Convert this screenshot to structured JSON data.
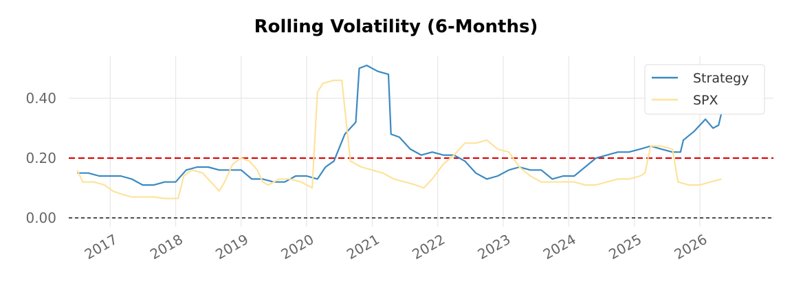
{
  "chart_data": {
    "type": "line",
    "title": "Rolling Volatility (6-Months)",
    "xlabel": "",
    "ylabel": "",
    "xlim": [
      "2016-05-15",
      "2027-02-15"
    ],
    "ylim": [
      -0.03,
      0.54
    ],
    "x_ticks": [
      "2017",
      "2018",
      "2019",
      "2020",
      "2021",
      "2022",
      "2023",
      "2024",
      "2025",
      "2026"
    ],
    "y_ticks": [
      "0.00",
      "0.20",
      "0.40"
    ],
    "grid": true,
    "legend_position": "top-right",
    "reference_lines": [
      {
        "y": 0.2,
        "style": "dashed",
        "color": "#dd0000"
      },
      {
        "y": 0.0,
        "style": "dashed",
        "color": "#000000"
      }
    ],
    "series": [
      {
        "name": "Strategy",
        "color": "#3a89c2",
        "points": [
          [
            "2016-07-01",
            0.15
          ],
          [
            "2016-09-01",
            0.15
          ],
          [
            "2016-11-01",
            0.14
          ],
          [
            "2017-01-01",
            0.14
          ],
          [
            "2017-03-01",
            0.14
          ],
          [
            "2017-05-01",
            0.13
          ],
          [
            "2017-07-01",
            0.11
          ],
          [
            "2017-09-01",
            0.11
          ],
          [
            "2017-11-01",
            0.12
          ],
          [
            "2018-01-01",
            0.12
          ],
          [
            "2018-03-01",
            0.16
          ],
          [
            "2018-05-01",
            0.17
          ],
          [
            "2018-07-01",
            0.17
          ],
          [
            "2018-09-01",
            0.16
          ],
          [
            "2018-11-01",
            0.16
          ],
          [
            "2019-01-01",
            0.16
          ],
          [
            "2019-03-01",
            0.13
          ],
          [
            "2019-05-01",
            0.13
          ],
          [
            "2019-07-01",
            0.12
          ],
          [
            "2019-09-01",
            0.12
          ],
          [
            "2019-11-01",
            0.14
          ],
          [
            "2020-01-01",
            0.14
          ],
          [
            "2020-03-01",
            0.13
          ],
          [
            "2020-04-15",
            0.17
          ],
          [
            "2020-06-01",
            0.19
          ],
          [
            "2020-08-01",
            0.28
          ],
          [
            "2020-10-01",
            0.32
          ],
          [
            "2020-10-20",
            0.5
          ],
          [
            "2020-12-01",
            0.51
          ],
          [
            "2021-02-01",
            0.49
          ],
          [
            "2021-04-01",
            0.48
          ],
          [
            "2021-04-15",
            0.28
          ],
          [
            "2021-06-01",
            0.27
          ],
          [
            "2021-08-01",
            0.23
          ],
          [
            "2021-10-01",
            0.21
          ],
          [
            "2021-12-01",
            0.22
          ],
          [
            "2022-02-01",
            0.21
          ],
          [
            "2022-04-01",
            0.21
          ],
          [
            "2022-06-01",
            0.19
          ],
          [
            "2022-08-01",
            0.15
          ],
          [
            "2022-10-01",
            0.13
          ],
          [
            "2022-12-01",
            0.14
          ],
          [
            "2023-02-01",
            0.16
          ],
          [
            "2023-04-01",
            0.17
          ],
          [
            "2023-06-01",
            0.16
          ],
          [
            "2023-08-01",
            0.16
          ],
          [
            "2023-10-01",
            0.13
          ],
          [
            "2023-12-01",
            0.14
          ],
          [
            "2024-02-01",
            0.14
          ],
          [
            "2024-04-01",
            0.17
          ],
          [
            "2024-06-01",
            0.2
          ],
          [
            "2024-08-01",
            0.21
          ],
          [
            "2024-10-01",
            0.22
          ],
          [
            "2024-12-01",
            0.22
          ],
          [
            "2025-02-01",
            0.23
          ],
          [
            "2025-04-01",
            0.24
          ],
          [
            "2025-06-01",
            0.23
          ],
          [
            "2025-08-01",
            0.22
          ],
          [
            "2025-09-15",
            0.22
          ],
          [
            "2025-10-01",
            0.26
          ],
          [
            "2025-12-01",
            0.29
          ],
          [
            "2026-02-01",
            0.33
          ],
          [
            "2026-03-15",
            0.3
          ],
          [
            "2026-04-15",
            0.31
          ],
          [
            "2026-05-01",
            0.35
          ]
        ]
      },
      {
        "name": "SPX",
        "color": "#fde39a",
        "points": [
          [
            "2016-07-01",
            0.16
          ],
          [
            "2016-08-01",
            0.12
          ],
          [
            "2016-10-01",
            0.12
          ],
          [
            "2016-12-01",
            0.11
          ],
          [
            "2017-01-15",
            0.09
          ],
          [
            "2017-03-01",
            0.08
          ],
          [
            "2017-05-01",
            0.07
          ],
          [
            "2017-07-01",
            0.07
          ],
          [
            "2017-09-01",
            0.07
          ],
          [
            "2017-11-01",
            0.065
          ],
          [
            "2018-01-15",
            0.065
          ],
          [
            "2018-02-15",
            0.14
          ],
          [
            "2018-04-01",
            0.16
          ],
          [
            "2018-06-01",
            0.15
          ],
          [
            "2018-08-01",
            0.11
          ],
          [
            "2018-09-01",
            0.09
          ],
          [
            "2018-10-01",
            0.12
          ],
          [
            "2018-11-15",
            0.18
          ],
          [
            "2019-01-01",
            0.2
          ],
          [
            "2019-02-15",
            0.19
          ],
          [
            "2019-04-01",
            0.16
          ],
          [
            "2019-05-01",
            0.12
          ],
          [
            "2019-06-01",
            0.11
          ],
          [
            "2019-08-01",
            0.13
          ],
          [
            "2019-10-01",
            0.13
          ],
          [
            "2019-12-01",
            0.12
          ],
          [
            "2020-02-01",
            0.1
          ],
          [
            "2020-03-01",
            0.42
          ],
          [
            "2020-04-01",
            0.45
          ],
          [
            "2020-06-01",
            0.46
          ],
          [
            "2020-07-15",
            0.46
          ],
          [
            "2020-09-01",
            0.19
          ],
          [
            "2020-11-01",
            0.17
          ],
          [
            "2021-01-01",
            0.16
          ],
          [
            "2021-03-01",
            0.15
          ],
          [
            "2021-05-01",
            0.13
          ],
          [
            "2021-07-01",
            0.12
          ],
          [
            "2021-09-01",
            0.11
          ],
          [
            "2021-10-15",
            0.1
          ],
          [
            "2021-12-01",
            0.13
          ],
          [
            "2022-02-01",
            0.18
          ],
          [
            "2022-04-01",
            0.21
          ],
          [
            "2022-06-01",
            0.25
          ],
          [
            "2022-08-01",
            0.25
          ],
          [
            "2022-10-01",
            0.26
          ],
          [
            "2022-12-01",
            0.23
          ],
          [
            "2023-02-01",
            0.22
          ],
          [
            "2023-04-01",
            0.17
          ],
          [
            "2023-06-01",
            0.14
          ],
          [
            "2023-08-01",
            0.12
          ],
          [
            "2023-10-01",
            0.12
          ],
          [
            "2023-12-01",
            0.12
          ],
          [
            "2024-02-01",
            0.12
          ],
          [
            "2024-04-01",
            0.11
          ],
          [
            "2024-06-01",
            0.11
          ],
          [
            "2024-08-01",
            0.12
          ],
          [
            "2024-10-01",
            0.13
          ],
          [
            "2024-12-01",
            0.13
          ],
          [
            "2025-02-01",
            0.14
          ],
          [
            "2025-03-01",
            0.15
          ],
          [
            "2025-04-01",
            0.24
          ],
          [
            "2025-06-01",
            0.24
          ],
          [
            "2025-08-01",
            0.23
          ],
          [
            "2025-09-01",
            0.12
          ],
          [
            "2025-11-01",
            0.11
          ],
          [
            "2026-01-01",
            0.11
          ],
          [
            "2026-03-01",
            0.12
          ],
          [
            "2026-05-01",
            0.13
          ]
        ]
      }
    ]
  }
}
